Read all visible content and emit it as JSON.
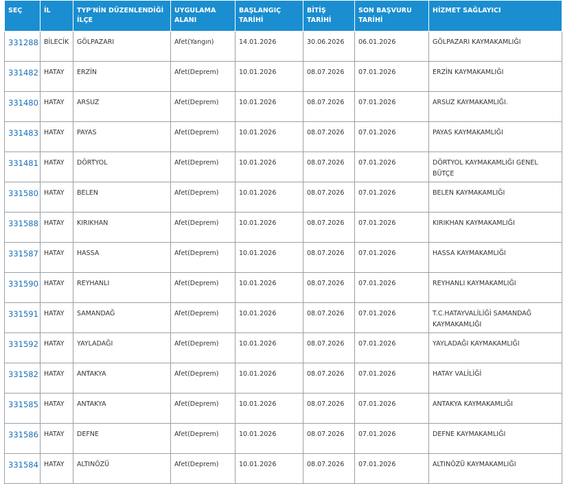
{
  "table": {
    "columns": [
      "SEÇ",
      "İL",
      "TYP'NİN DÜZENLENDİĞİ İLÇE",
      "UYGULAMA ALANI",
      "BAŞLANGIÇ TARİHİ",
      "BİTİŞ TARİHİ",
      "SON BAŞVURU TARİHİ",
      "HİZMET SAĞLAYICI"
    ],
    "rows": [
      [
        "331288",
        "BİLECİK",
        "GÖLPAZARI",
        "Afet(Yangın)",
        "14.01.2026",
        "30.06.2026",
        "06.01.2026",
        "GÖLPAZARI KAYMAKAMLIĞI"
      ],
      [
        "331482",
        "HATAY",
        "ERZİN",
        "Afet(Deprem)",
        "10.01.2026",
        "08.07.2026",
        "07.01.2026",
        "ERZİN KAYMAKAMLIĞI"
      ],
      [
        "331480",
        "HATAY",
        "ARSUZ",
        "Afet(Deprem)",
        "10.01.2026",
        "08.07.2026",
        "07.01.2026",
        "ARSUZ KAYMAKAMLIĞI."
      ],
      [
        "331483",
        "HATAY",
        "PAYAS",
        "Afet(Deprem)",
        "10.01.2026",
        "08.07.2026",
        "07.01.2026",
        "PAYAS KAYMAKAMLIĞI"
      ],
      [
        "331481",
        "HATAY",
        "DÖRTYOL",
        "Afet(Deprem)",
        "10.01.2026",
        "08.07.2026",
        "07.01.2026",
        "DÖRTYOL KAYMAKAMLIĞI GENEL BÜTÇE"
      ],
      [
        "331580",
        "HATAY",
        "BELEN",
        "Afet(Deprem)",
        "10.01.2026",
        "08.07.2026",
        "07.01.2026",
        "BELEN KAYMAKAMLIĞI"
      ],
      [
        "331588",
        "HATAY",
        "KIRIKHAN",
        "Afet(Deprem)",
        "10.01.2026",
        "08.07.2026",
        "07.01.2026",
        "KIRIKHAN KAYMAKAMLIĞI"
      ],
      [
        "331587",
        "HATAY",
        "HASSA",
        "Afet(Deprem)",
        "10.01.2026",
        "08.07.2026",
        "07.01.2026",
        "HASSA KAYMAKAMLIĞI"
      ],
      [
        "331590",
        "HATAY",
        "REYHANLI",
        "Afet(Deprem)",
        "10.01.2026",
        "08.07.2026",
        "07.01.2026",
        "REYHANLI KAYMAKAMLIĞI"
      ],
      [
        "331591",
        "HATAY",
        "SAMANDAĞ",
        "Afet(Deprem)",
        "10.01.2026",
        "08.07.2026",
        "07.01.2026",
        "T.C.HATAYVALİLİĞİ SAMANDAĞ KAYMAKAMLIĞI"
      ],
      [
        "331592",
        "HATAY",
        "YAYLADAĞI",
        "Afet(Deprem)",
        "10.01.2026",
        "08.07.2026",
        "07.01.2026",
        "YAYLADAĞI KAYMAKAMLIĞI"
      ],
      [
        "331582",
        "HATAY",
        "ANTAKYA",
        "Afet(Deprem)",
        "10.01.2026",
        "08.07.2026",
        "07.01.2026",
        "HATAY VALİLİĞİ"
      ],
      [
        "331585",
        "HATAY",
        "ANTAKYA",
        "Afet(Deprem)",
        "10.01.2026",
        "08.07.2026",
        "07.01.2026",
        "ANTAKYA KAYMAKAMLIĞI"
      ],
      [
        "331586",
        "HATAY",
        "DEFNE",
        "Afet(Deprem)",
        "10.01.2026",
        "08.07.2026",
        "07.01.2026",
        "DEFNE KAYMAKAMLIĞI"
      ],
      [
        "331584",
        "HATAY",
        "ALTINÖZÜ",
        "Afet(Deprem)",
        "10.01.2026",
        "08.07.2026",
        "07.01.2026",
        "ALTINÖZÜ KAYMAKAMLIĞI"
      ]
    ]
  }
}
